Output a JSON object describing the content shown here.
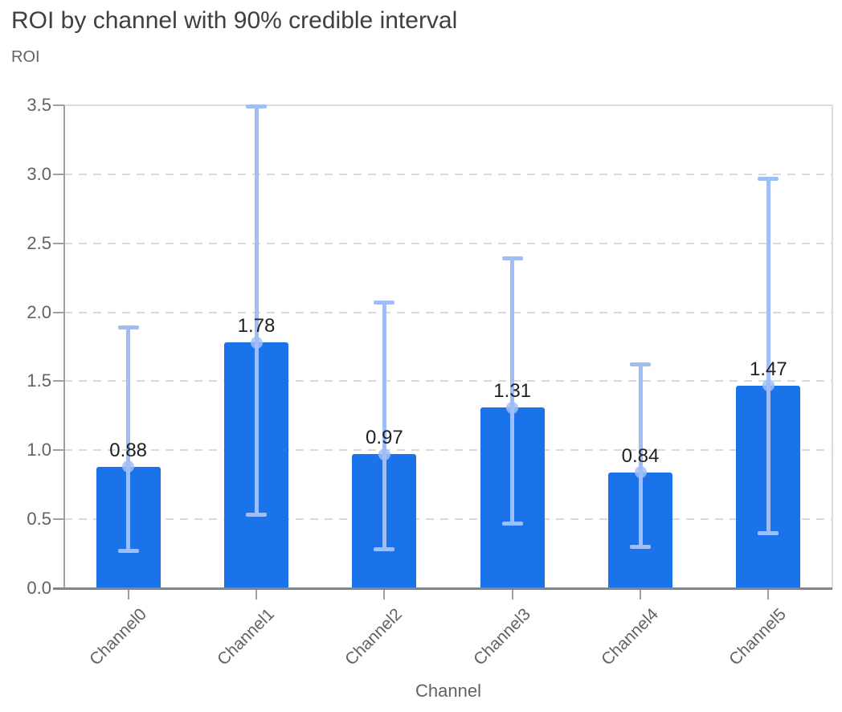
{
  "chart_data": {
    "type": "bar",
    "title": "ROI by channel with 90% credible interval",
    "ylabel": "ROI",
    "xlabel": "Channel",
    "categories": [
      "Channel0",
      "Channel1",
      "Channel2",
      "Channel3",
      "Channel4",
      "Channel5"
    ],
    "values": [
      0.88,
      1.78,
      0.97,
      1.31,
      0.84,
      1.47
    ],
    "value_labels": [
      "0.88",
      "1.78",
      "0.97",
      "1.31",
      "0.84",
      "1.47"
    ],
    "error_low": [
      0.27,
      0.53,
      0.28,
      0.47,
      0.3,
      0.4
    ],
    "error_high": [
      1.89,
      3.49,
      2.07,
      2.39,
      1.62,
      2.97
    ],
    "y_ticks": [
      0,
      0.5,
      1,
      1.5,
      2,
      2.5,
      3,
      3.5
    ],
    "y_tick_labels": [
      "0.0",
      "0.5",
      "1.0",
      "1.5",
      "2.0",
      "2.5",
      "3.0",
      "3.5"
    ],
    "ylim": [
      0,
      3.5
    ],
    "grid": "horizontal-dashed",
    "legend": "none",
    "colors": {
      "bar": "#1a73e8",
      "error_bar": "#9fbef8",
      "grid": "#d9dadb",
      "axis": "#80868b",
      "axis_light": "#9aa0a6",
      "border": "#dadce0",
      "tick_label": "#5f6368",
      "value_label": "#202124",
      "title": "#3c4043"
    }
  }
}
